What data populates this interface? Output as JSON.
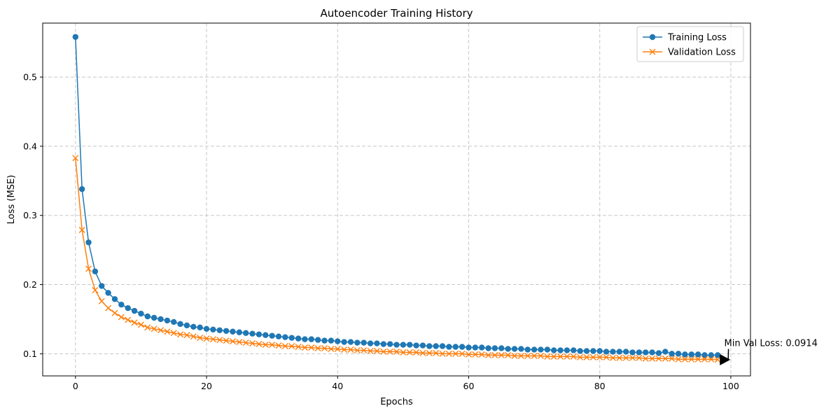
{
  "chart_data": {
    "type": "line",
    "title": "Autoencoder Training History",
    "xlabel": "Epochs",
    "ylabel": "Loss (MSE)",
    "xlim": [
      -5,
      103
    ],
    "ylim": [
      0.068,
      0.578
    ],
    "xticks": [
      0,
      20,
      40,
      60,
      80,
      100
    ],
    "yticks": [
      0.1,
      0.2,
      0.3,
      0.4,
      0.5
    ],
    "grid": true,
    "legend_position": "top-right",
    "colors": {
      "training": "#1f77b4",
      "validation": "#ff7f0e"
    },
    "series": [
      {
        "name": "Training Loss",
        "marker": "circle",
        "values": [
          0.558,
          0.338,
          0.261,
          0.219,
          0.198,
          0.188,
          0.179,
          0.171,
          0.166,
          0.162,
          0.158,
          0.154,
          0.152,
          0.15,
          0.148,
          0.146,
          0.143,
          0.141,
          0.139,
          0.138,
          0.136,
          0.135,
          0.134,
          0.133,
          0.132,
          0.131,
          0.13,
          0.129,
          0.128,
          0.127,
          0.126,
          0.125,
          0.124,
          0.123,
          0.122,
          0.121,
          0.121,
          0.12,
          0.119,
          0.119,
          0.118,
          0.117,
          0.117,
          0.116,
          0.116,
          0.115,
          0.115,
          0.114,
          0.114,
          0.113,
          0.113,
          0.113,
          0.112,
          0.112,
          0.111,
          0.111,
          0.111,
          0.11,
          0.11,
          0.11,
          0.109,
          0.109,
          0.109,
          0.108,
          0.108,
          0.108,
          0.107,
          0.107,
          0.107,
          0.106,
          0.106,
          0.106,
          0.106,
          0.105,
          0.105,
          0.105,
          0.105,
          0.104,
          0.104,
          0.104,
          0.104,
          0.103,
          0.103,
          0.103,
          0.103,
          0.102,
          0.102,
          0.102,
          0.102,
          0.101,
          0.103,
          0.1,
          0.1,
          0.099,
          0.099,
          0.099,
          0.098,
          0.098,
          0.098
        ]
      },
      {
        "name": "Validation Loss",
        "marker": "x",
        "values": [
          0.383,
          0.279,
          0.223,
          0.192,
          0.176,
          0.166,
          0.159,
          0.153,
          0.149,
          0.145,
          0.142,
          0.138,
          0.136,
          0.134,
          0.132,
          0.13,
          0.128,
          0.127,
          0.125,
          0.123,
          0.122,
          0.121,
          0.12,
          0.119,
          0.118,
          0.117,
          0.116,
          0.115,
          0.114,
          0.113,
          0.113,
          0.112,
          0.111,
          0.111,
          0.11,
          0.109,
          0.109,
          0.108,
          0.108,
          0.107,
          0.107,
          0.106,
          0.106,
          0.105,
          0.105,
          0.104,
          0.104,
          0.103,
          0.103,
          0.103,
          0.102,
          0.102,
          0.102,
          0.101,
          0.101,
          0.101,
          0.1,
          0.1,
          0.1,
          0.1,
          0.099,
          0.099,
          0.099,
          0.098,
          0.098,
          0.098,
          0.098,
          0.097,
          0.097,
          0.097,
          0.097,
          0.097,
          0.096,
          0.096,
          0.096,
          0.096,
          0.096,
          0.095,
          0.095,
          0.095,
          0.095,
          0.095,
          0.094,
          0.094,
          0.094,
          0.094,
          0.094,
          0.093,
          0.093,
          0.093,
          0.093,
          0.093,
          0.092,
          0.092,
          0.092,
          0.092,
          0.092,
          0.092,
          0.0914
        ]
      }
    ],
    "annotation": {
      "text": "Min Val Loss: 0.0914",
      "x": 98,
      "y": 0.0914,
      "text_x": 99,
      "text_y": 0.111
    }
  }
}
